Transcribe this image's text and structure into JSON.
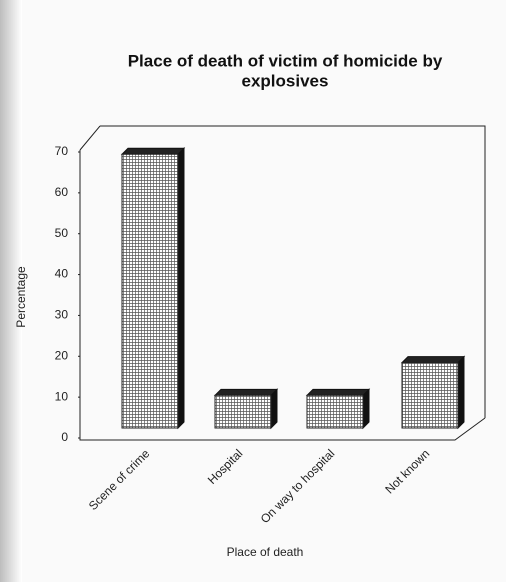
{
  "chart_data": {
    "type": "bar3d",
    "title": [
      "Place of death of victim of homicide by",
      "explosives"
    ],
    "x_label": "Place of death",
    "y_label": "Percentage",
    "categories": [
      "Scene of crime",
      "Hospital",
      "On way to hospital",
      "Not known"
    ],
    "values": [
      67,
      8,
      8,
      16
    ],
    "ylim": [
      0,
      70
    ],
    "yticks": [
      0,
      10,
      20,
      30,
      40,
      50,
      60,
      70
    ]
  }
}
